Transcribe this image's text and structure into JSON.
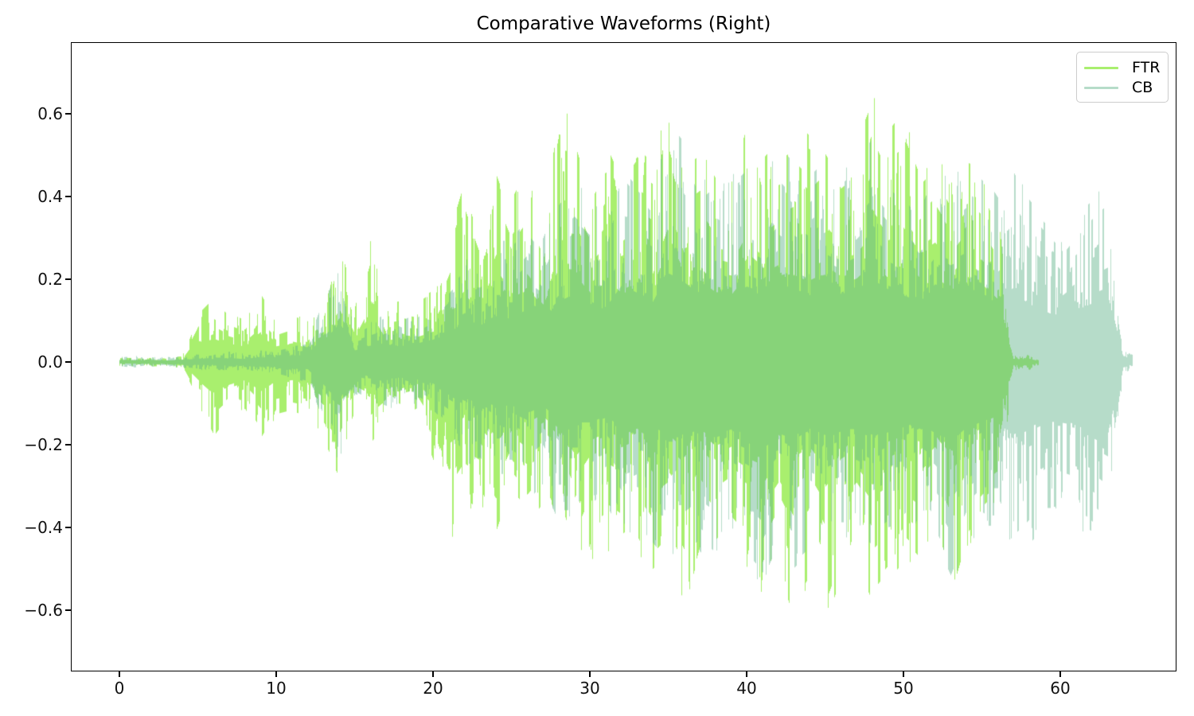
{
  "chart_data": {
    "type": "line",
    "variant": "audio-waveform-overlay",
    "title": "Comparative Waveforms (Right)",
    "xlabel": "",
    "ylabel": "",
    "xlim": [
      -3.1,
      67.4
    ],
    "ylim": [
      -0.75,
      0.77
    ],
    "grid": false,
    "legend": {
      "position": "upper right",
      "entries": [
        "FTR",
        "CB"
      ]
    },
    "axes": {
      "x_ticks": [
        {
          "v": 0,
          "label": "0"
        },
        {
          "v": 10,
          "label": "10"
        },
        {
          "v": 20,
          "label": "20"
        },
        {
          "v": 30,
          "label": "30"
        },
        {
          "v": 40,
          "label": "40"
        },
        {
          "v": 50,
          "label": "50"
        },
        {
          "v": 60,
          "label": "60"
        }
      ],
      "y_ticks": [
        {
          "v": 0.6,
          "label": "0.6"
        },
        {
          "v": 0.4,
          "label": "0.4"
        },
        {
          "v": 0.2,
          "label": "0.2"
        },
        {
          "v": 0.0,
          "label": "0.0"
        },
        {
          "v": -0.2,
          "label": "−0.2"
        },
        {
          "v": -0.4,
          "label": "−0.4"
        },
        {
          "v": -0.6,
          "label": "−0.6"
        }
      ]
    },
    "series": [
      {
        "name": "FTR",
        "color": "#a9ef6e",
        "draw_color": "#a9ef6e",
        "seed": 7,
        "t_start": 0.0,
        "t_end": 58.6,
        "env_step": 1.0,
        "env_pos": [
          0.01,
          0.01,
          0.012,
          0.01,
          0.015,
          0.12,
          0.16,
          0.12,
          0.1,
          0.17,
          0.1,
          0.12,
          0.1,
          0.14,
          0.3,
          0.15,
          0.33,
          0.15,
          0.16,
          0.15,
          0.18,
          0.32,
          0.45,
          0.32,
          0.55,
          0.42,
          0.5,
          0.38,
          0.61,
          0.6,
          0.46,
          0.55,
          0.46,
          0.52,
          0.48,
          0.71,
          0.52,
          0.56,
          0.48,
          0.46,
          0.6,
          0.52,
          0.57,
          0.6,
          0.55,
          0.6,
          0.52,
          0.56,
          0.66,
          0.56,
          0.61,
          0.5,
          0.55,
          0.46,
          0.55,
          0.53,
          0.42,
          0.02,
          0.02,
          0.0,
          0,
          0,
          0,
          0,
          0,
          0
        ],
        "env_neg": [
          0.01,
          0.01,
          0.012,
          0.01,
          0.015,
          0.12,
          0.21,
          0.15,
          0.12,
          0.2,
          0.13,
          0.12,
          0.13,
          0.2,
          0.28,
          0.15,
          0.2,
          0.15,
          0.18,
          0.15,
          0.26,
          0.45,
          0.36,
          0.4,
          0.5,
          0.36,
          0.42,
          0.36,
          0.46,
          0.63,
          0.5,
          0.46,
          0.5,
          0.46,
          0.55,
          0.5,
          0.6,
          0.46,
          0.55,
          0.5,
          0.56,
          0.6,
          0.5,
          0.62,
          0.55,
          0.68,
          0.56,
          0.5,
          0.6,
          0.55,
          0.5,
          0.55,
          0.46,
          0.6,
          0.46,
          0.4,
          0.36,
          0.02,
          0.02,
          0.0,
          0,
          0,
          0,
          0,
          0,
          0
        ]
      },
      {
        "name": "CB",
        "color": "#b6dcc9",
        "draw_color": "rgba(94,178,136,0.45)",
        "seed": 42,
        "t_start": 0.0,
        "t_end": 64.6,
        "env_step": 1.0,
        "env_pos": [
          0.012,
          0.015,
          0.012,
          0.012,
          0.015,
          0.02,
          0.02,
          0.025,
          0.02,
          0.03,
          0.03,
          0.04,
          0.05,
          0.15,
          0.25,
          0.08,
          0.1,
          0.12,
          0.1,
          0.12,
          0.15,
          0.2,
          0.25,
          0.25,
          0.3,
          0.3,
          0.35,
          0.3,
          0.4,
          0.45,
          0.4,
          0.36,
          0.5,
          0.45,
          0.4,
          0.6,
          0.55,
          0.46,
          0.5,
          0.46,
          0.5,
          0.46,
          0.55,
          0.5,
          0.46,
          0.5,
          0.46,
          0.5,
          0.57,
          0.5,
          0.46,
          0.4,
          0.5,
          0.46,
          0.5,
          0.46,
          0.4,
          0.48,
          0.4,
          0.35,
          0.3,
          0.36,
          0.4,
          0.44,
          0.03,
          0.01
        ],
        "env_neg": [
          0.012,
          0.015,
          0.012,
          0.012,
          0.015,
          0.02,
          0.02,
          0.025,
          0.02,
          0.03,
          0.03,
          0.04,
          0.05,
          0.15,
          0.25,
          0.08,
          0.1,
          0.12,
          0.1,
          0.12,
          0.15,
          0.2,
          0.25,
          0.25,
          0.3,
          0.3,
          0.35,
          0.3,
          0.4,
          0.4,
          0.4,
          0.36,
          0.45,
          0.42,
          0.45,
          0.5,
          0.5,
          0.46,
          0.5,
          0.46,
          0.5,
          0.55,
          0.46,
          0.5,
          0.46,
          0.5,
          0.46,
          0.46,
          0.5,
          0.46,
          0.45,
          0.4,
          0.46,
          0.55,
          0.45,
          0.4,
          0.4,
          0.5,
          0.45,
          0.4,
          0.4,
          0.42,
          0.45,
          0.5,
          0.03,
          0.01
        ]
      }
    ]
  }
}
